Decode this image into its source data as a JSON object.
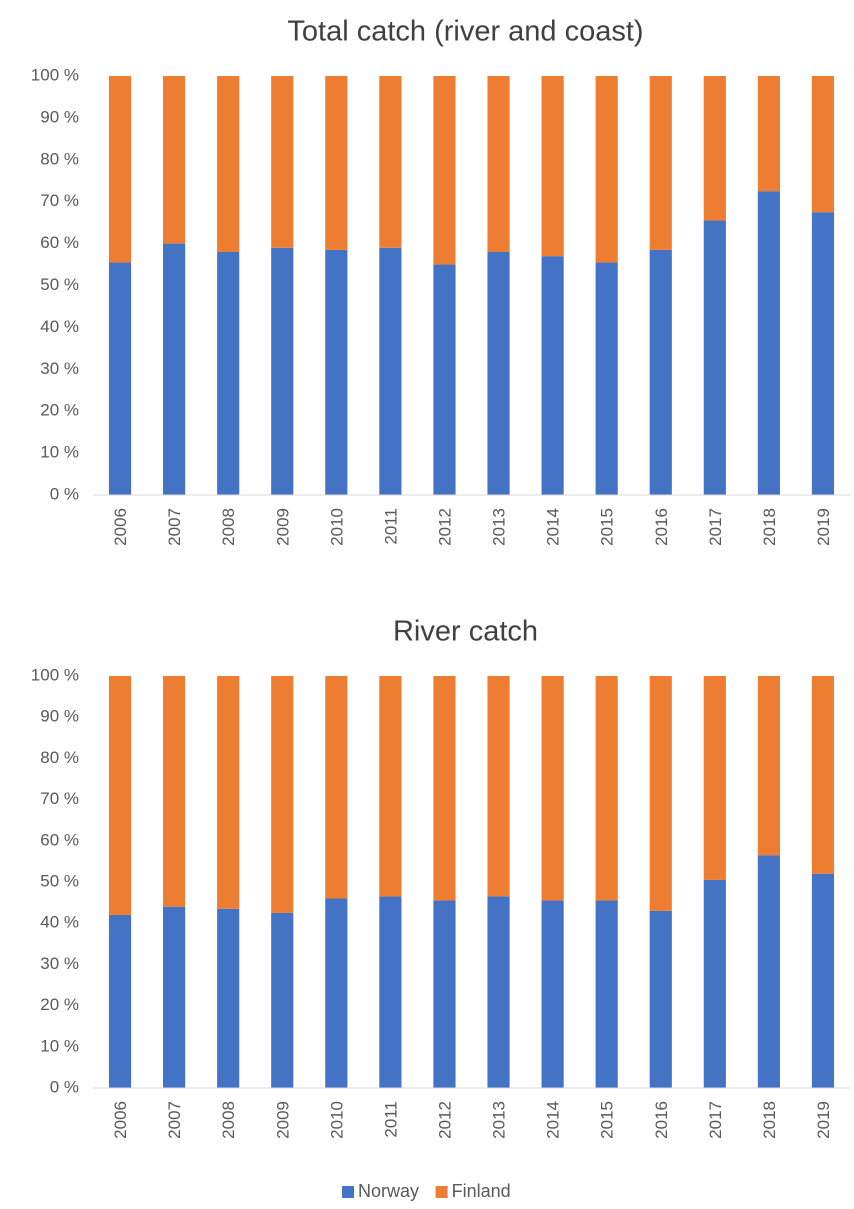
{
  "colors": {
    "norway": "#4472C4",
    "finland": "#ED7D31",
    "axis": "#D9D9D9",
    "text": "#595959",
    "title": "#404040"
  },
  "legend": {
    "placement": "bottom",
    "items": [
      {
        "name": "Norway",
        "color": "#4472C4"
      },
      {
        "name": "Finland",
        "color": "#ED7D31"
      }
    ]
  },
  "chart_data": [
    {
      "type": "bar",
      "stacked": "percent",
      "title": "Total catch (river and coast)",
      "xlabel": "",
      "ylabel": "",
      "ylim": [
        0,
        100
      ],
      "yticks": [
        "0 %",
        "10 %",
        "20 %",
        "30 %",
        "40 %",
        "50 %",
        "60 %",
        "70 %",
        "80 %",
        "90 %",
        "100 %"
      ],
      "grid": false,
      "categories": [
        "2006",
        "2007",
        "2008",
        "2009",
        "2010",
        "2011",
        "2012",
        "2013",
        "2014",
        "2015",
        "2016",
        "2017",
        "2018",
        "2019"
      ],
      "series": [
        {
          "name": "Norway",
          "values": [
            55.5,
            60,
            58,
            59,
            58.5,
            59,
            55,
            58,
            57,
            55.5,
            58.5,
            65.5,
            72.5,
            67.5
          ]
        },
        {
          "name": "Finland",
          "values": [
            44.5,
            40,
            42,
            41,
            41.5,
            41,
            45,
            42,
            43,
            44.5,
            41.5,
            34.5,
            27.5,
            32.5
          ]
        }
      ]
    },
    {
      "type": "bar",
      "stacked": "percent",
      "title": "River catch",
      "xlabel": "",
      "ylabel": "",
      "ylim": [
        0,
        100
      ],
      "yticks": [
        "0 %",
        "10 %",
        "20 %",
        "30 %",
        "40 %",
        "50 %",
        "60 %",
        "70 %",
        "80 %",
        "90 %",
        "100 %"
      ],
      "grid": false,
      "categories": [
        "2006",
        "2007",
        "2008",
        "2009",
        "2010",
        "2011",
        "2012",
        "2013",
        "2014",
        "2015",
        "2016",
        "2017",
        "2018",
        "2019"
      ],
      "series": [
        {
          "name": "Norway",
          "values": [
            42,
            44,
            43.5,
            42.5,
            46,
            46.5,
            45.5,
            46.5,
            45.5,
            45.5,
            43,
            50.5,
            56.5,
            52
          ]
        },
        {
          "name": "Finland",
          "values": [
            58,
            56,
            56.5,
            57.5,
            54,
            53.5,
            54.5,
            53.5,
            54.5,
            54.5,
            57,
            49.5,
            43.5,
            48
          ]
        }
      ]
    }
  ]
}
